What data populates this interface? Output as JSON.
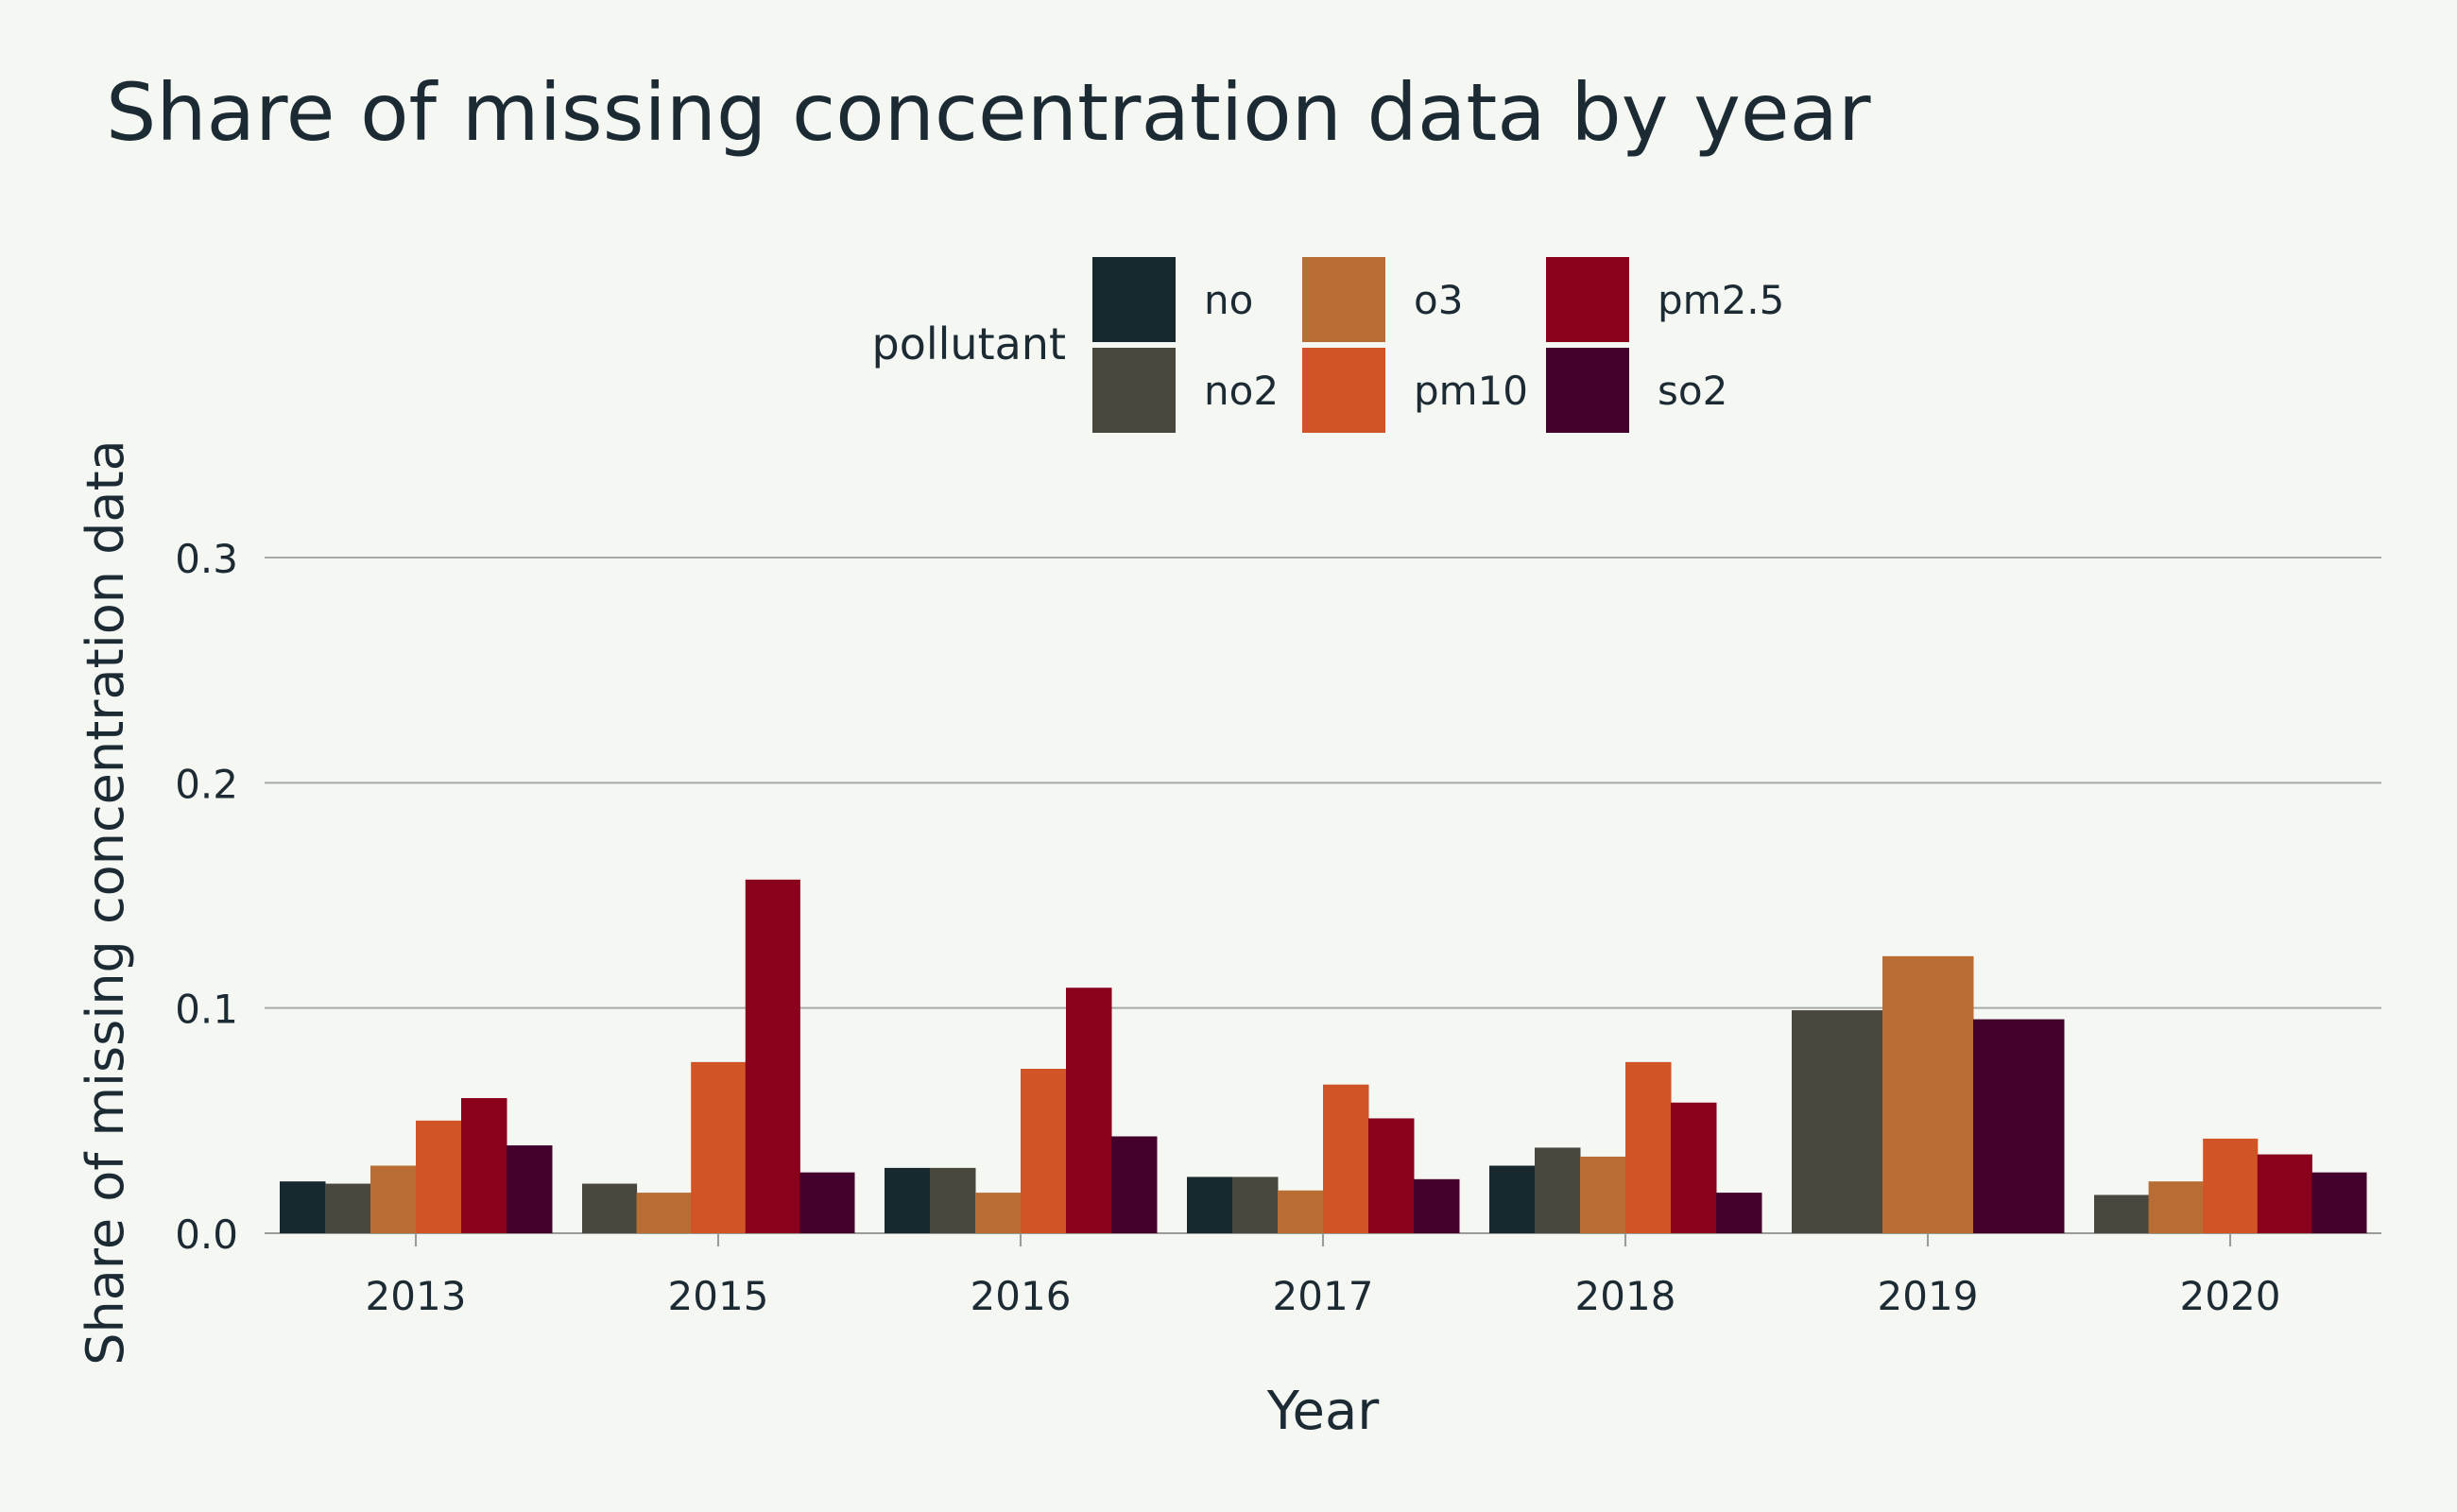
{
  "chart_data": {
    "type": "bar",
    "title": "Share of missing concentration data by year",
    "xlabel": "Year",
    "ylabel": "Share of missing concentration data",
    "ylim": [
      0,
      0.3
    ],
    "yticks": [
      "0.0",
      "0.1",
      "0.2",
      "0.3"
    ],
    "grid": true,
    "legend": {
      "title": "pollutant",
      "placement": "top-center",
      "entries": [
        "no",
        "o3",
        "pm2.5",
        "no2",
        "pm10",
        "so2"
      ]
    },
    "categories": [
      "2013",
      "2015",
      "2016",
      "2017",
      "2018",
      "2019",
      "2020"
    ],
    "series": [
      {
        "name": "no",
        "color": "#17282f",
        "values": [
          0.023,
          null,
          0.029,
          0.025,
          0.03,
          null,
          null
        ]
      },
      {
        "name": "no2",
        "color": "#47473e",
        "values": [
          0.022,
          0.022,
          0.029,
          0.025,
          0.038,
          0.099,
          0.017
        ]
      },
      {
        "name": "o3",
        "color": "#b76d33",
        "values": [
          0.03,
          0.018,
          0.018,
          0.019,
          0.034,
          0.123,
          0.023
        ]
      },
      {
        "name": "pm10",
        "color": "#d15426",
        "values": [
          0.05,
          0.076,
          0.073,
          0.066,
          0.076,
          null,
          0.042
        ]
      },
      {
        "name": "pm2.5",
        "color": "#8a011c",
        "values": [
          0.06,
          0.157,
          0.109,
          0.051,
          0.058,
          null,
          0.035
        ]
      },
      {
        "name": "so2",
        "color": "#42002a",
        "values": [
          0.039,
          0.027,
          0.043,
          0.024,
          0.018,
          0.095,
          0.027
        ]
      }
    ]
  }
}
